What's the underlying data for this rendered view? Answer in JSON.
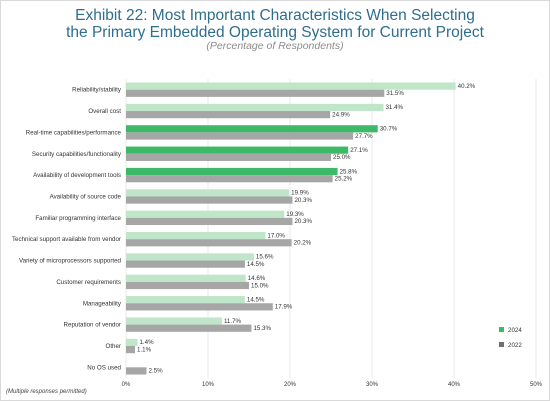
{
  "header": {
    "title_line1": "Exhibit 22: Most Important Characteristics When Selecting",
    "title_line2": "the Primary Embedded Operating System for Current Project",
    "subtitle": "(Percentage of Respondents)"
  },
  "footnote": "(Multiple responses permitted)",
  "colors": {
    "s2024_light": "#bfe6c9",
    "s2024_dark": "#3dba68",
    "s2022": "#a6a6a6",
    "grid": "#e3e3e3"
  },
  "chart_data": {
    "type": "bar",
    "orientation": "horizontal",
    "categories": [
      "Reliability/stability",
      "Overall cost",
      "Real-time capabilities/performance",
      "Security capabilities/functionality",
      "Availability of development tools",
      "Availability of source code",
      "Familiar programming interface",
      "Technical support available from vendor",
      "Variety of microprocessors supported",
      "Customer requirements",
      "Manageability",
      "Reputation of vendor",
      "Other",
      "No OS used"
    ],
    "series": [
      {
        "name": "2024",
        "values": [
          40.2,
          31.4,
          30.7,
          27.1,
          25.8,
          19.9,
          19.3,
          17.0,
          15.6,
          14.6,
          14.5,
          11.7,
          1.4,
          null
        ],
        "labels": [
          "40.2%",
          "31.4%",
          "30.7%",
          "27.1%",
          "25.8%",
          "19.9%",
          "19.3%",
          "17.0%",
          "15.6%",
          "14.6%",
          "14.5%",
          "11.7%",
          "1.4%",
          ""
        ]
      },
      {
        "name": "2022",
        "values": [
          31.5,
          24.9,
          27.7,
          25.0,
          25.2,
          20.3,
          20.3,
          20.2,
          14.5,
          15.0,
          17.9,
          15.3,
          1.1,
          2.5
        ],
        "labels": [
          "31.5%",
          "24.9%",
          "27.7%",
          "25.0%",
          "25.2%",
          "20.3%",
          "20.3%",
          "20.2%",
          "14.5%",
          "15.0%",
          "17.9%",
          "15.3%",
          "1.1%",
          "2.5%"
        ]
      }
    ],
    "highlighted_categories_2024": [
      2,
      3,
      4
    ],
    "xlim": [
      0,
      50
    ],
    "xticks": [
      "0%",
      "10%",
      "20%",
      "30%",
      "40%",
      "50%"
    ],
    "grid": true,
    "legend_position": "bottom-right"
  }
}
